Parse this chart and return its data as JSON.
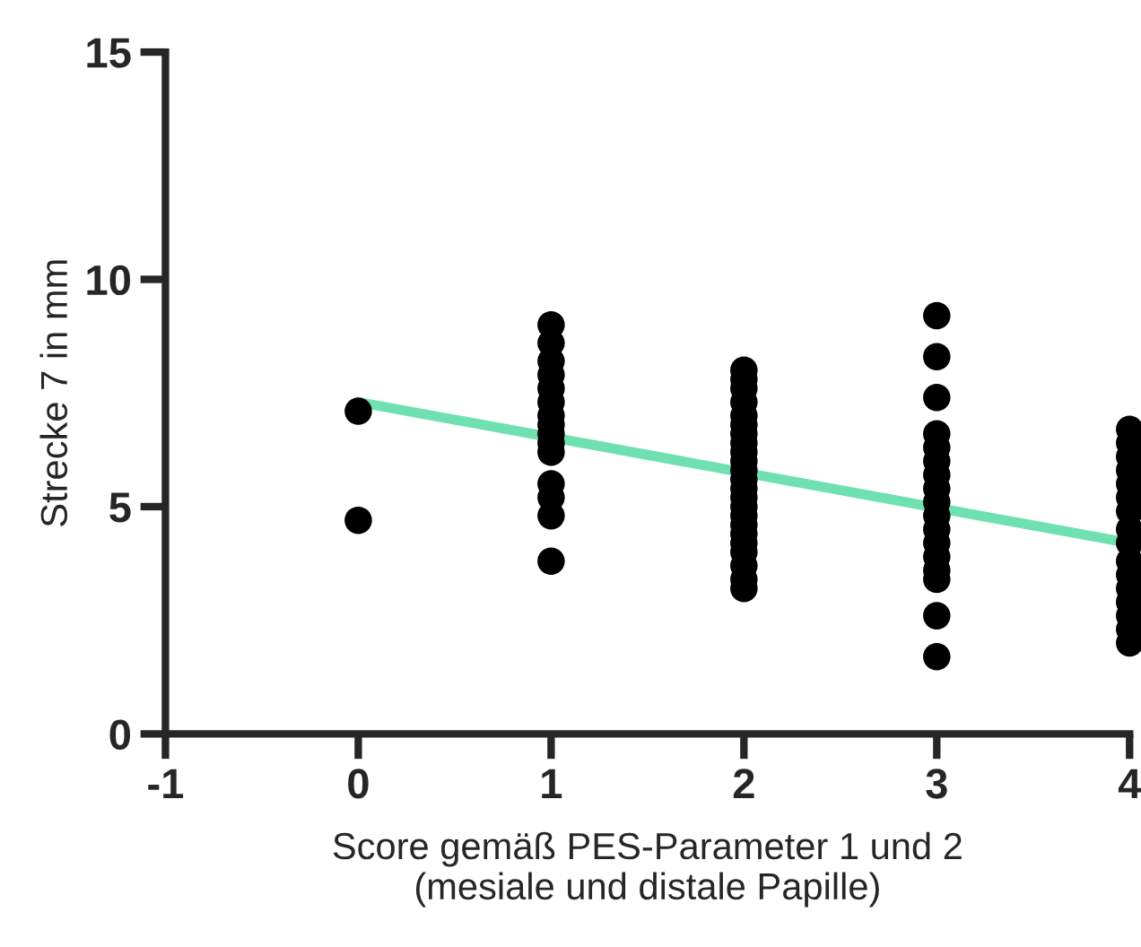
{
  "chart_data": {
    "type": "scatter",
    "xlabel": "Score gemäß PES-Parameter 1 und 2\n(mesiale und distale Papille)",
    "ylabel": "Strecke 7 in mm",
    "xlim": [
      -1,
      4
    ],
    "xticks": [
      -1,
      0,
      1,
      2,
      3,
      4
    ],
    "ylim": [
      0,
      15
    ],
    "yticks": [
      0,
      5,
      10,
      15
    ],
    "grid": false,
    "marker": "circle",
    "series": [
      {
        "color": "#000000",
        "x": [
          0,
          0,
          1,
          1,
          1,
          1,
          1,
          1,
          1,
          1,
          1,
          1,
          1,
          1,
          1,
          1,
          1,
          2,
          2,
          2,
          2,
          2,
          2,
          2,
          2,
          2,
          2,
          2,
          2,
          2,
          2,
          2,
          2,
          2,
          2,
          2,
          2,
          2,
          2,
          2,
          3,
          3,
          3,
          3,
          3,
          3,
          3,
          3,
          3,
          3,
          3,
          3,
          3,
          3,
          3,
          3,
          3,
          4,
          4,
          4,
          4,
          4,
          4,
          4,
          4,
          4,
          4,
          4,
          4,
          4,
          4,
          4,
          4
        ],
        "values": [
          7.1,
          4.7,
          9.0,
          8.6,
          8.2,
          7.9,
          7.6,
          7.3,
          7.0,
          6.8,
          6.6,
          6.4,
          6.2,
          5.5,
          5.2,
          4.8,
          3.8,
          8.0,
          7.8,
          7.6,
          7.3,
          7.0,
          6.8,
          6.6,
          6.4,
          6.2,
          6.0,
          5.8,
          5.6,
          5.4,
          5.2,
          5.0,
          4.8,
          4.6,
          4.4,
          4.2,
          4.0,
          3.7,
          3.4,
          3.2,
          9.2,
          8.3,
          7.4,
          6.6,
          6.3,
          6.0,
          5.7,
          5.4,
          5.1,
          4.8,
          4.5,
          4.2,
          3.9,
          3.6,
          3.4,
          2.6,
          1.7,
          6.7,
          6.4,
          6.1,
          5.8,
          5.5,
          5.2,
          4.9,
          4.5,
          4.2,
          3.8,
          3.5,
          3.2,
          2.9,
          2.6,
          2.3,
          2.0
        ]
      },
      {
        "type": "line",
        "color": "#6fe0b0",
        "x": [
          0,
          4
        ],
        "values": [
          7.3,
          4.2
        ],
        "marker": "none"
      }
    ]
  }
}
